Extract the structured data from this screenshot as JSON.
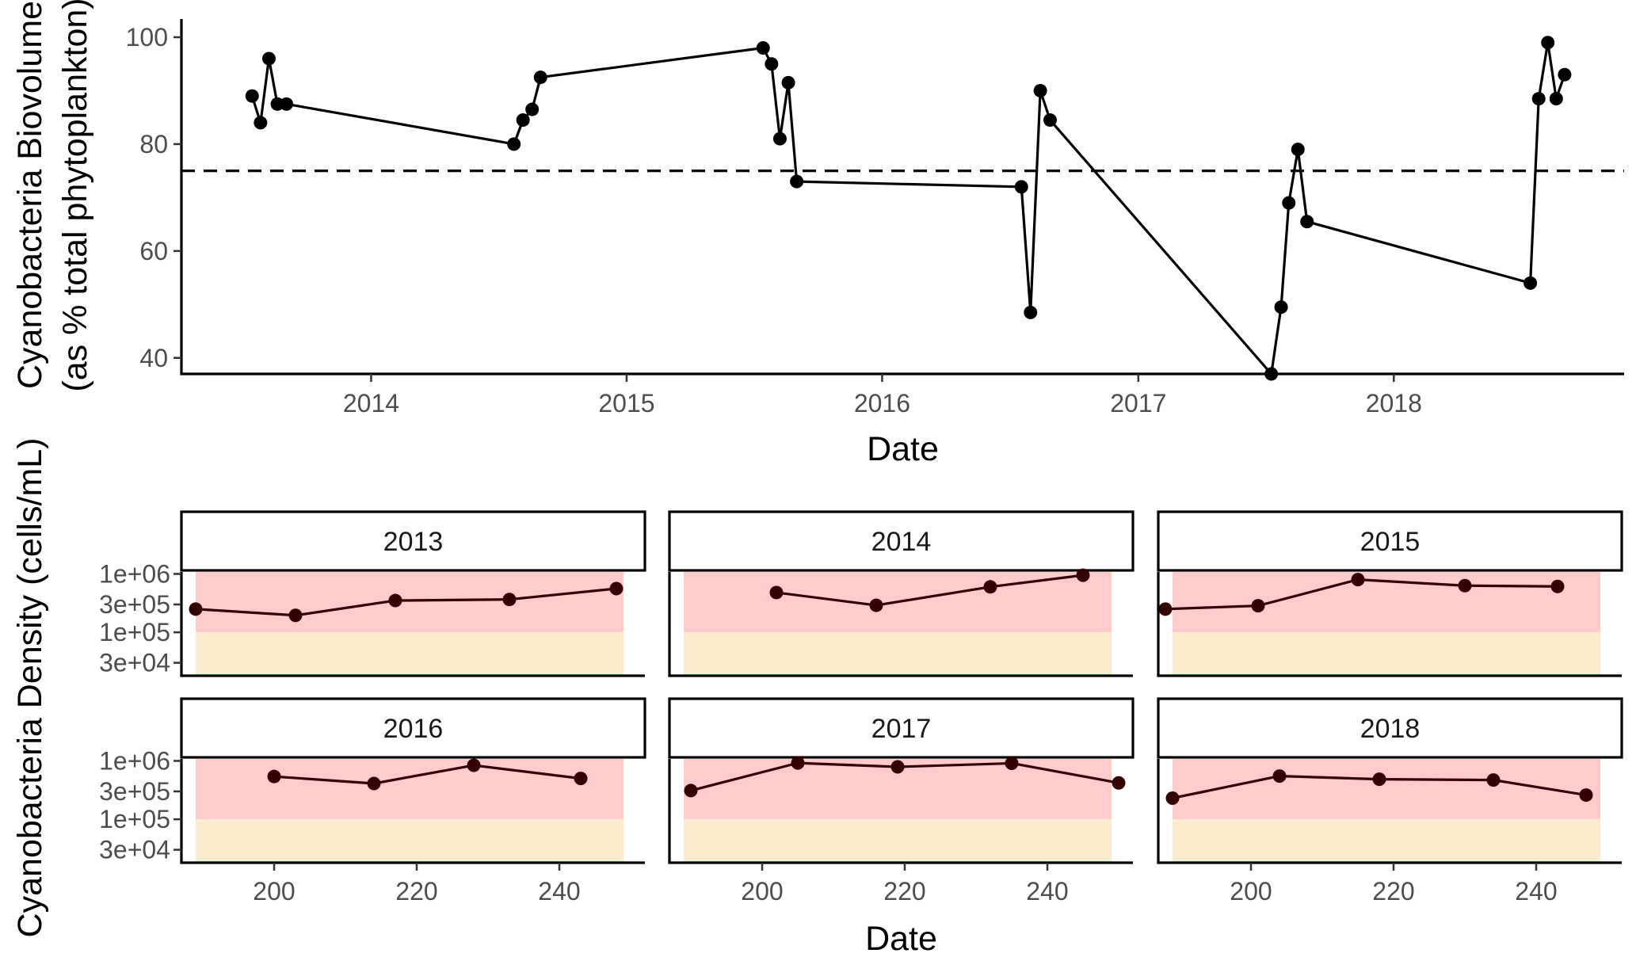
{
  "chart_data": [
    {
      "type": "line",
      "xlabel": "Date",
      "ylabel_lines": [
        "Cyanobacteria Biovolume",
        "(as % total phytoplankton)"
      ],
      "ylim": [
        37,
        104
      ],
      "xlim": [
        "2013-04-05",
        "2018-11-26"
      ],
      "x_ticks": [
        "2014",
        "2015",
        "2016",
        "2017",
        "2018"
      ],
      "y_ticks": [
        "40",
        "60",
        "80",
        "100"
      ],
      "reference_line": {
        "y": 75,
        "style": "dashed"
      },
      "series": [
        {
          "x": [
            "2013-07-15",
            "2013-07-27",
            "2013-08-08",
            "2013-08-20",
            "2013-09-02",
            "2014-07-24",
            "2014-08-06",
            "2014-08-19",
            "2014-08-31",
            "2015-07-15",
            "2015-07-27",
            "2015-08-08",
            "2015-08-20",
            "2015-09-01",
            "2016-07-18",
            "2016-07-31",
            "2016-08-14",
            "2016-08-28",
            "2017-07-10",
            "2017-07-24",
            "2017-08-04",
            "2017-08-17",
            "2017-08-30",
            "2018-07-15",
            "2018-07-27",
            "2018-08-09",
            "2018-08-21",
            "2018-09-02"
          ],
          "y": [
            89,
            84,
            96,
            87.5,
            87.5,
            80,
            84.5,
            86.5,
            92.5,
            98,
            95,
            81,
            91.5,
            73,
            72,
            48.5,
            90,
            84.5,
            37,
            49.5,
            69,
            79,
            65.5,
            54,
            88.5,
            99,
            88.5,
            93
          ]
        }
      ]
    },
    {
      "type": "line",
      "layout": "facet-grid",
      "ylabel": "Cyanobacteria Density (cells/mL)",
      "xlabel": "Date",
      "xlim": [
        187,
        252
      ],
      "x_ticks": [
        200,
        220,
        240
      ],
      "y_scale": "log10",
      "y_ticks": [
        "1e+06",
        "3e+05",
        "1e+05",
        "3e+04"
      ],
      "y_tick_values": [
        1000000,
        300000,
        100000,
        30000
      ],
      "ylim": [
        18000,
        1080000
      ],
      "bands": [
        {
          "from": 100000,
          "to": 1080000,
          "color": "#ffcccc"
        },
        {
          "from": 20000,
          "to": 100000,
          "color": "#fdebd0"
        },
        {
          "from": 18000,
          "to": 20000,
          "color": "#ccffcc"
        }
      ],
      "band_x_range": [
        189,
        249
      ],
      "line_color": "#330000",
      "panels": [
        {
          "label": "2013",
          "x": [
            189,
            203,
            217,
            233,
            248
          ],
          "y": [
            250000,
            195000,
            350000,
            365000,
            560000
          ]
        },
        {
          "label": "2014",
          "x": [
            202,
            216,
            232,
            245
          ],
          "y": [
            480000,
            290000,
            600000,
            950000
          ]
        },
        {
          "label": "2015",
          "x": [
            188,
            201,
            215,
            230,
            243
          ],
          "y": [
            250000,
            285000,
            800000,
            630000,
            610000
          ]
        },
        {
          "label": "2016",
          "x": [
            200,
            214,
            228,
            243
          ],
          "y": [
            540000,
            410000,
            840000,
            500000
          ]
        },
        {
          "label": "2017",
          "x": [
            190,
            205,
            219,
            235,
            250
          ],
          "y": [
            310000,
            920000,
            790000,
            910000,
            420000
          ]
        },
        {
          "label": "2018",
          "x": [
            189,
            204,
            218,
            234,
            247
          ],
          "y": [
            230000,
            550000,
            485000,
            470000,
            260000
          ]
        }
      ]
    }
  ]
}
